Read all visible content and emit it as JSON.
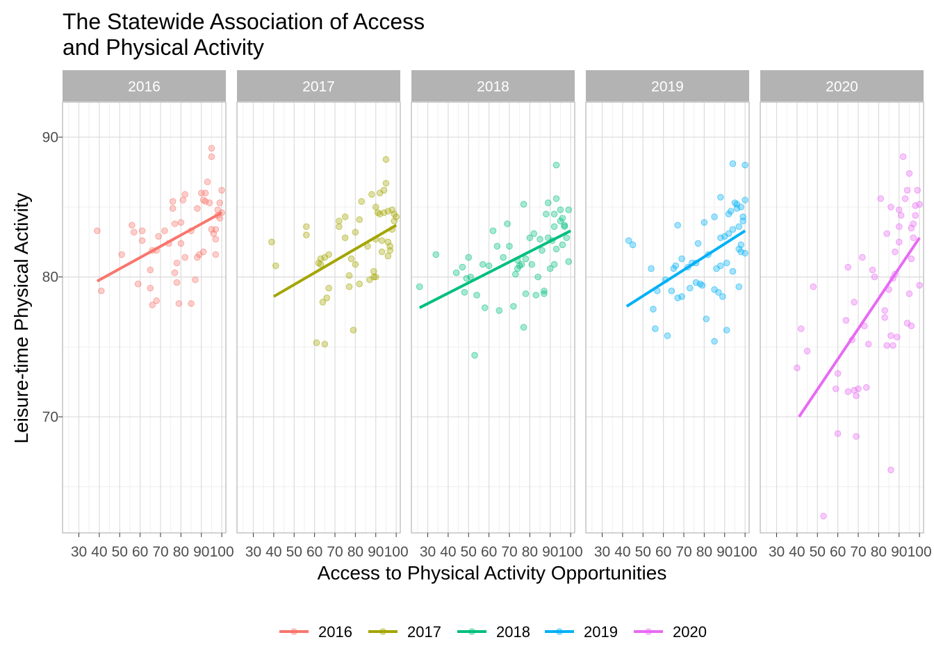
{
  "chart_data": {
    "type": "scatter",
    "title_lines": [
      "The Statewide Association of Access",
      "and Physical Activity"
    ],
    "xlabel": "Access to Physical Activity Opportunities",
    "ylabel": "Leisure-time Physical Activity",
    "xlim": [
      22,
      102
    ],
    "ylim": [
      61.7,
      92.5
    ],
    "x_ticks": [
      30,
      40,
      50,
      60,
      70,
      80,
      90,
      100
    ],
    "y_ticks": [
      70,
      80,
      90
    ],
    "grid": true,
    "legend_position": "bottom",
    "panels": [
      {
        "year": "2016",
        "color": "#F8766D",
        "fit": [
          [
            39,
            79.7
          ],
          [
            100,
            84.6
          ]
        ],
        "points": [
          [
            39,
            83.3
          ],
          [
            41,
            79.0
          ],
          [
            51,
            81.6
          ],
          [
            56,
            83.7
          ],
          [
            57,
            83.2
          ],
          [
            59,
            79.5
          ],
          [
            61,
            83.3
          ],
          [
            61,
            82.6
          ],
          [
            65,
            80.5
          ],
          [
            65,
            79.2
          ],
          [
            66,
            81.9
          ],
          [
            66,
            78.0
          ],
          [
            68,
            81.9
          ],
          [
            68,
            78.3
          ],
          [
            69,
            82.9
          ],
          [
            72,
            83.3
          ],
          [
            74,
            82.4
          ],
          [
            76,
            85.4
          ],
          [
            76,
            84.9
          ],
          [
            77,
            83.8
          ],
          [
            77,
            80.3
          ],
          [
            78,
            79.6
          ],
          [
            78,
            81.0
          ],
          [
            79,
            78.1
          ],
          [
            80,
            82.4
          ],
          [
            80,
            83.9
          ],
          [
            81,
            85.5
          ],
          [
            82,
            81.4
          ],
          [
            82,
            85.9
          ],
          [
            85,
            78.1
          ],
          [
            85,
            83.3
          ],
          [
            87,
            79.8
          ],
          [
            88,
            81.4
          ],
          [
            88,
            84.9
          ],
          [
            89,
            81.6
          ],
          [
            90,
            86.0
          ],
          [
            91,
            81.8
          ],
          [
            91,
            85.5
          ],
          [
            92,
            86.0
          ],
          [
            92,
            85.4
          ],
          [
            93,
            86.8
          ],
          [
            94,
            85.3
          ],
          [
            95,
            83.4
          ],
          [
            95,
            89.2
          ],
          [
            95,
            88.6
          ],
          [
            96,
            83.1
          ],
          [
            97,
            82.7
          ],
          [
            97,
            83.4
          ],
          [
            97,
            81.6
          ],
          [
            98,
            84.4
          ],
          [
            98,
            84.8
          ],
          [
            99,
            84.2
          ],
          [
            99,
            85.3
          ],
          [
            100,
            86.2
          ],
          [
            100,
            84.6
          ]
        ]
      },
      {
        "year": "2017",
        "color": "#A3A500",
        "fit": [
          [
            40,
            78.6
          ],
          [
            100,
            83.7
          ]
        ],
        "points": [
          [
            39,
            82.5
          ],
          [
            41,
            80.8
          ],
          [
            56,
            83.6
          ],
          [
            56,
            83.0
          ],
          [
            61,
            75.3
          ],
          [
            62,
            81.0
          ],
          [
            63,
            80.9
          ],
          [
            63,
            81.3
          ],
          [
            64,
            78.2
          ],
          [
            65,
            75.2
          ],
          [
            65,
            81.4
          ],
          [
            66,
            78.5
          ],
          [
            67,
            81.6
          ],
          [
            67,
            79.2
          ],
          [
            72,
            84.0
          ],
          [
            72,
            83.6
          ],
          [
            75,
            84.3
          ],
          [
            75,
            82.8
          ],
          [
            77,
            80.1
          ],
          [
            77,
            79.3
          ],
          [
            78,
            81.3
          ],
          [
            79,
            76.2
          ],
          [
            80,
            80.9
          ],
          [
            80,
            83.2
          ],
          [
            82,
            79.5
          ],
          [
            82,
            84.1
          ],
          [
            83,
            85.4
          ],
          [
            86,
            82.2
          ],
          [
            87,
            79.8
          ],
          [
            88,
            85.9
          ],
          [
            89,
            80.0
          ],
          [
            89,
            80.4
          ],
          [
            90,
            80.0
          ],
          [
            90,
            82.7
          ],
          [
            90,
            85.0
          ],
          [
            91,
            84.6
          ],
          [
            92,
            84.5
          ],
          [
            92,
            86.0
          ],
          [
            93,
            82.6
          ],
          [
            93,
            81.8
          ],
          [
            94,
            86.2
          ],
          [
            94,
            84.6
          ],
          [
            95,
            86.7
          ],
          [
            95,
            88.4
          ],
          [
            96,
            81.5
          ],
          [
            96,
            82.5
          ],
          [
            96,
            84.7
          ],
          [
            97,
            81.9
          ],
          [
            97,
            82.2
          ],
          [
            98,
            84.8
          ],
          [
            98,
            83.4
          ],
          [
            99,
            84.0
          ],
          [
            99,
            84.5
          ],
          [
            100,
            84.3
          ]
        ]
      },
      {
        "year": "2018",
        "color": "#00BF7D",
        "fit": [
          [
            26,
            77.8
          ],
          [
            100,
            83.3
          ]
        ],
        "points": [
          [
            26,
            79.3
          ],
          [
            34,
            81.6
          ],
          [
            44,
            80.3
          ],
          [
            47,
            80.7
          ],
          [
            48,
            78.9
          ],
          [
            49,
            79.9
          ],
          [
            50,
            81.4
          ],
          [
            51,
            80.0
          ],
          [
            53,
            74.4
          ],
          [
            54,
            78.7
          ],
          [
            57,
            80.9
          ],
          [
            58,
            77.8
          ],
          [
            60,
            80.8
          ],
          [
            62,
            83.3
          ],
          [
            64,
            82.2
          ],
          [
            65,
            77.6
          ],
          [
            67,
            81.4
          ],
          [
            69,
            83.8
          ],
          [
            70,
            82.2
          ],
          [
            72,
            77.9
          ],
          [
            73,
            80.2
          ],
          [
            74,
            80.6
          ],
          [
            74,
            81.2
          ],
          [
            75,
            80.8
          ],
          [
            76,
            80.9
          ],
          [
            77,
            76.4
          ],
          [
            77,
            85.2
          ],
          [
            78,
            78.8
          ],
          [
            78,
            81.3
          ],
          [
            80,
            82.8
          ],
          [
            81,
            80.9
          ],
          [
            82,
            83.1
          ],
          [
            83,
            78.7
          ],
          [
            84,
            80.0
          ],
          [
            85,
            82.7
          ],
          [
            86,
            81.9
          ],
          [
            87,
            78.8
          ],
          [
            87,
            79.0
          ],
          [
            88,
            84.5
          ],
          [
            89,
            82.8
          ],
          [
            89,
            85.3
          ],
          [
            90,
            80.6
          ],
          [
            91,
            82.6
          ],
          [
            92,
            84.5
          ],
          [
            92,
            83.6
          ],
          [
            92,
            80.9
          ],
          [
            93,
            85.6
          ],
          [
            93,
            88.0
          ],
          [
            93,
            82.0
          ],
          [
            95,
            84.0
          ],
          [
            95,
            84.8
          ],
          [
            96,
            84.2
          ],
          [
            96,
            82.3
          ],
          [
            97,
            83.7
          ],
          [
            97,
            83.6
          ],
          [
            98,
            82.8
          ],
          [
            99,
            84.8
          ],
          [
            99,
            81.1
          ]
        ]
      },
      {
        "year": "2019",
        "color": "#00B0F6",
        "fit": [
          [
            42,
            77.9
          ],
          [
            100,
            83.3
          ]
        ],
        "points": [
          [
            43,
            82.6
          ],
          [
            45,
            82.3
          ],
          [
            54,
            80.6
          ],
          [
            55,
            77.7
          ],
          [
            56,
            76.3
          ],
          [
            57,
            79.0
          ],
          [
            61,
            79.8
          ],
          [
            62,
            75.8
          ],
          [
            64,
            79.0
          ],
          [
            65,
            80.6
          ],
          [
            66,
            80.8
          ],
          [
            67,
            83.7
          ],
          [
            67,
            78.5
          ],
          [
            69,
            78.6
          ],
          [
            69,
            81.3
          ],
          [
            72,
            80.7
          ],
          [
            73,
            79.2
          ],
          [
            74,
            81.0
          ],
          [
            76,
            81.0
          ],
          [
            76,
            79.6
          ],
          [
            77,
            82.4
          ],
          [
            78,
            79.5
          ],
          [
            79,
            79.4
          ],
          [
            80,
            83.9
          ],
          [
            81,
            77.0
          ],
          [
            82,
            81.6
          ],
          [
            85,
            84.3
          ],
          [
            85,
            79.1
          ],
          [
            85,
            75.4
          ],
          [
            86,
            80.6
          ],
          [
            87,
            78.9
          ],
          [
            88,
            80.8
          ],
          [
            88,
            82.8
          ],
          [
            88,
            85.7
          ],
          [
            89,
            78.6
          ],
          [
            90,
            82.9
          ],
          [
            91,
            81.0
          ],
          [
            91,
            76.2
          ],
          [
            92,
            83.1
          ],
          [
            92,
            84.5
          ],
          [
            93,
            84.7
          ],
          [
            94,
            80.4
          ],
          [
            94,
            88.1
          ],
          [
            94,
            83.4
          ],
          [
            95,
            85.3
          ],
          [
            96,
            84.9
          ],
          [
            96,
            85.2
          ],
          [
            97,
            79.3
          ],
          [
            97,
            82.0
          ],
          [
            97,
            83.6
          ],
          [
            98,
            85.0
          ],
          [
            98,
            82.3
          ],
          [
            98,
            81.8
          ],
          [
            99,
            84.0
          ],
          [
            99,
            84.3
          ],
          [
            100,
            88.0
          ],
          [
            100,
            85.5
          ],
          [
            100,
            81.7
          ]
        ]
      },
      {
        "year": "2020",
        "color": "#E76BF3",
        "fit": [
          [
            41,
            70.0
          ],
          [
            100,
            82.8
          ]
        ],
        "points": [
          [
            40,
            73.5
          ],
          [
            42,
            76.3
          ],
          [
            45,
            74.7
          ],
          [
            48,
            79.3
          ],
          [
            53,
            62.9
          ],
          [
            59,
            72.0
          ],
          [
            60,
            68.8
          ],
          [
            60,
            73.1
          ],
          [
            64,
            76.9
          ],
          [
            65,
            80.7
          ],
          [
            65,
            71.8
          ],
          [
            67,
            75.5
          ],
          [
            68,
            71.9
          ],
          [
            68,
            78.2
          ],
          [
            69,
            68.6
          ],
          [
            69,
            71.5
          ],
          [
            70,
            72.0
          ],
          [
            72,
            81.4
          ],
          [
            73,
            76.5
          ],
          [
            74,
            72.1
          ],
          [
            75,
            75.2
          ],
          [
            77,
            80.5
          ],
          [
            78,
            80.0
          ],
          [
            81,
            85.6
          ],
          [
            83,
            77.6
          ],
          [
            83,
            77.1
          ],
          [
            84,
            83.1
          ],
          [
            84,
            75.1
          ],
          [
            85,
            79.1
          ],
          [
            86,
            75.8
          ],
          [
            86,
            85.0
          ],
          [
            86,
            66.2
          ],
          [
            87,
            75.1
          ],
          [
            87,
            79.9
          ],
          [
            88,
            81.8
          ],
          [
            88,
            80.2
          ],
          [
            89,
            75.7
          ],
          [
            90,
            84.8
          ],
          [
            90,
            82.5
          ],
          [
            90,
            83.6
          ],
          [
            91,
            84.4
          ],
          [
            92,
            88.6
          ],
          [
            93,
            85.6
          ],
          [
            94,
            76.7
          ],
          [
            94,
            86.2
          ],
          [
            95,
            87.4
          ],
          [
            95,
            78.8
          ],
          [
            96,
            83.5
          ],
          [
            96,
            81.3
          ],
          [
            96,
            76.5
          ],
          [
            97,
            83.8
          ],
          [
            97,
            82.8
          ],
          [
            98,
            85.1
          ],
          [
            98,
            84.4
          ],
          [
            99,
            86.2
          ],
          [
            100,
            79.4
          ],
          [
            100,
            85.2
          ]
        ]
      }
    ]
  }
}
